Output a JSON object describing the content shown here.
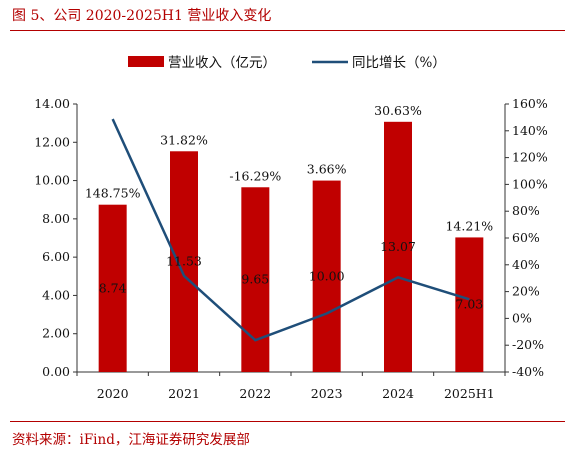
{
  "figure_title": "图 5、公司 2020-2025H1 营业收入变化",
  "source_text": "资料来源：iFind，江海证券研究发展部",
  "colors": {
    "accent": "#b30000",
    "bar": "#c00000",
    "line": "#1f4e79"
  },
  "chart_data": {
    "type": "bar",
    "title": "",
    "categories": [
      "2020",
      "2021",
      "2022",
      "2023",
      "2024",
      "2025H1"
    ],
    "series": [
      {
        "name": "营业收入（亿元）",
        "type": "bar",
        "axis": "left",
        "values": [
          8.74,
          11.53,
          9.65,
          10.0,
          13.07,
          7.03
        ],
        "labels": [
          "8.74",
          "11.53",
          "9.65",
          "10.00",
          "13.07",
          "7.03"
        ]
      },
      {
        "name": "同比增长（%）",
        "type": "line",
        "axis": "right",
        "values": [
          148.75,
          31.82,
          -16.29,
          3.66,
          30.63,
          14.21
        ],
        "labels": [
          "148.75%",
          "31.82%",
          "-16.29%",
          "3.66%",
          "30.63%",
          "14.21%"
        ]
      }
    ],
    "y_left": {
      "min": 0,
      "max": 14,
      "step": 2,
      "ticks": [
        "0.00",
        "2.00",
        "4.00",
        "6.00",
        "8.00",
        "10.00",
        "12.00",
        "14.00"
      ]
    },
    "y_right": {
      "min": -40,
      "max": 160,
      "step": 20,
      "ticks": [
        "-40%",
        "-20%",
        "0%",
        "20%",
        "40%",
        "60%",
        "80%",
        "100%",
        "120%",
        "140%",
        "160%"
      ]
    },
    "legend": "top-center",
    "grid": false
  }
}
